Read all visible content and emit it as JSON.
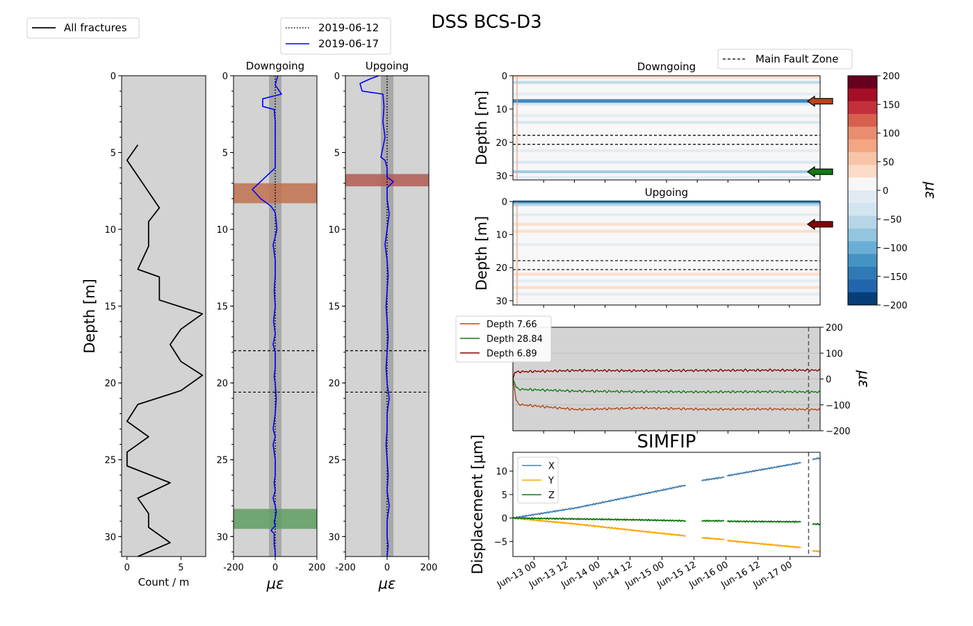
{
  "figure": {
    "title": "DSS BCS-D3",
    "colors": {
      "background": "#d3d3d3",
      "fracture_line": "#000000",
      "baseline": "#000000",
      "current": "#0000ff",
      "fault": "#000000",
      "dss_band": "#9a9a9a"
    }
  },
  "chart_data": [
    {
      "id": "fractures",
      "type": "line",
      "xlabel": "Count / m",
      "ylabel": "Depth [m]",
      "xlim": [
        -0.5,
        7.3
      ],
      "ylim": [
        31.3,
        0
      ],
      "xticks": [
        0,
        5
      ],
      "yticks": [
        0,
        5,
        10,
        15,
        20,
        25,
        30
      ],
      "legend": {
        "position": "top-left",
        "entries": [
          "All fractures"
        ]
      },
      "series": [
        {
          "name": "All fractures",
          "color": "#000000",
          "count": [
            1,
            0,
            3,
            2,
            2,
            1,
            3,
            3,
            7,
            5,
            4,
            5,
            7,
            5,
            1,
            0,
            2,
            0,
            0,
            4,
            1,
            2,
            2,
            4,
            1
          ],
          "depth": [
            4.5,
            5.5,
            8.6,
            9.5,
            11.1,
            12.6,
            13.1,
            14.6,
            15.5,
            16.5,
            17.5,
            18.6,
            19.5,
            20.5,
            21.4,
            22.5,
            23.5,
            24.5,
            25.4,
            26.5,
            27.5,
            28.5,
            29.4,
            30.4,
            31.3
          ]
        }
      ]
    },
    {
      "id": "downgoing_profile",
      "type": "line",
      "title": "Downgoing",
      "xlabel": "με",
      "xlim": [
        -200,
        200
      ],
      "ylim": [
        31.3,
        0
      ],
      "xticks": [
        -200,
        0,
        200
      ],
      "yticks": [
        0,
        5,
        10,
        15,
        20,
        25,
        30
      ],
      "legend": {
        "position": "top",
        "entries": [
          "2019-06-12",
          "2019-06-17"
        ]
      },
      "fault_depths": [
        17.9,
        20.6
      ],
      "band": [
        -30,
        30
      ],
      "highlights": [
        {
          "from": 7.0,
          "to": 8.3,
          "color": "#c0714e"
        },
        {
          "from": 28.2,
          "to": 29.5,
          "color": "#5e9e60"
        }
      ],
      "series": [
        {
          "name": "2019-06-12",
          "style": "dotted",
          "color": "#000000",
          "strain": [
            0,
            0
          ],
          "depth": [
            0,
            31.3
          ]
        },
        {
          "name": "2019-06-17",
          "style": "solid",
          "color": "#0000ff",
          "strain": [
            12,
            0,
            30,
            -60,
            -60,
            -5,
            0,
            0,
            -110,
            -70,
            -20,
            0,
            5,
            8,
            0,
            -10,
            0,
            0,
            -5,
            0,
            -8,
            0,
            -10,
            0,
            0,
            -5,
            0,
            5,
            0,
            -10,
            0,
            -10,
            0,
            0,
            -5,
            0,
            -10,
            0,
            5,
            0,
            -5,
            0,
            -20,
            -5,
            -5,
            0,
            0
          ],
          "depth": [
            0,
            0.6,
            1.2,
            1.5,
            2.0,
            2.2,
            3.0,
            6.0,
            7.4,
            8.0,
            8.5,
            8.9,
            9.5,
            10.0,
            10.5,
            11.0,
            12.0,
            13.0,
            14.0,
            15.0,
            16.0,
            16.8,
            17.5,
            18.0,
            19.0,
            19.6,
            20.0,
            21.0,
            22.0,
            23.0,
            23.5,
            24.0,
            25.0,
            26.0,
            26.5,
            27.0,
            27.5,
            28.0,
            28.4,
            28.8,
            29.0,
            29.3,
            29.6,
            29.8,
            30.5,
            31.0,
            31.3
          ]
        }
      ]
    },
    {
      "id": "upgoing_profile",
      "type": "line",
      "title": "Upgoing",
      "xlabel": "με",
      "xlim": [
        -200,
        200
      ],
      "ylim": [
        31.3,
        0
      ],
      "xticks": [
        -200,
        0,
        200
      ],
      "yticks": [
        0,
        5,
        10,
        15,
        20,
        25,
        30
      ],
      "fault_depths": [
        17.9,
        20.6
      ],
      "band": [
        -30,
        30
      ],
      "highlights": [
        {
          "from": 6.4,
          "to": 7.2,
          "color": "#b05a52"
        }
      ],
      "series": [
        {
          "name": "2019-06-12",
          "style": "dotted",
          "color": "#000000",
          "strain": [
            0,
            0
          ],
          "depth": [
            0,
            31.3
          ]
        },
        {
          "name": "2019-06-17",
          "style": "solid",
          "color": "#0000ff",
          "strain": [
            -40,
            -80,
            -130,
            -120,
            -20,
            -15,
            -20,
            -10,
            -25,
            -30,
            -10,
            0,
            0,
            30,
            0,
            0,
            10,
            0,
            -10,
            0,
            5,
            0,
            -5,
            0,
            5,
            0,
            -5,
            0,
            10,
            0,
            0,
            -5,
            0,
            5,
            0,
            10,
            0,
            0,
            5,
            0
          ],
          "depth": [
            0,
            0.2,
            0.5,
            1.0,
            1.2,
            2.0,
            3.0,
            4.0,
            5.0,
            5.3,
            5.5,
            6.0,
            6.6,
            6.9,
            7.3,
            8.0,
            9.0,
            10.0,
            11.0,
            12.0,
            13.0,
            14.0,
            15.0,
            16.0,
            17.0,
            18.0,
            19.0,
            20.0,
            21.0,
            22.0,
            23.0,
            24.0,
            25.0,
            26.0,
            27.0,
            28.0,
            29.0,
            30.0,
            30.6,
            31.3
          ]
        }
      ]
    },
    {
      "id": "downgoing_waterfall",
      "type": "heatmap",
      "title": "Downgoing",
      "ylabel": "Depth [m]",
      "ylim": [
        31.3,
        0
      ],
      "yticks": [
        0,
        10,
        20,
        30
      ],
      "fault_depths": [
        17.9,
        20.6
      ],
      "legend": {
        "position": "top-right",
        "entries": [
          "Main Fault Zone"
        ]
      },
      "rows": [
        {
          "depth": 0.5,
          "value": 30
        },
        {
          "depth": 2.0,
          "value": -60
        },
        {
          "depth": 4.0,
          "value": 15
        },
        {
          "depth": 5.5,
          "value": -20
        },
        {
          "depth": 7.66,
          "value": -140
        },
        {
          "depth": 8.5,
          "value": -40
        },
        {
          "depth": 10.0,
          "value": 10
        },
        {
          "depth": 12.0,
          "value": -15
        },
        {
          "depth": 14.0,
          "value": -30
        },
        {
          "depth": 16.0,
          "value": 10
        },
        {
          "depth": 19.0,
          "value": 8
        },
        {
          "depth": 22.5,
          "value": -20
        },
        {
          "depth": 24.0,
          "value": 15
        },
        {
          "depth": 26.0,
          "value": -25
        },
        {
          "depth": 28.84,
          "value": -70
        },
        {
          "depth": 30.5,
          "value": -15
        }
      ],
      "arrows": [
        {
          "depth": 7.66,
          "color": "#b5451b"
        },
        {
          "depth": 28.84,
          "color": "#137813"
        }
      ]
    },
    {
      "id": "upgoing_waterfall",
      "type": "heatmap",
      "title": "Upgoing",
      "ylabel": "Depth [m]",
      "ylim": [
        31.3,
        0
      ],
      "yticks": [
        0,
        10,
        20,
        30
      ],
      "fault_depths": [
        17.9,
        20.6
      ],
      "rows": [
        {
          "depth": 0.3,
          "value": -120
        },
        {
          "depth": 1.0,
          "value": -60
        },
        {
          "depth": 2.5,
          "value": 20
        },
        {
          "depth": 4.0,
          "value": -15
        },
        {
          "depth": 6.89,
          "value": 40
        },
        {
          "depth": 9.0,
          "value": 30
        },
        {
          "depth": 11.0,
          "value": 10
        },
        {
          "depth": 13.0,
          "value": -15
        },
        {
          "depth": 15.0,
          "value": 10
        },
        {
          "depth": 19.0,
          "value": 10
        },
        {
          "depth": 22.0,
          "value": 30
        },
        {
          "depth": 24.0,
          "value": -15
        },
        {
          "depth": 26.0,
          "value": 25
        },
        {
          "depth": 28.0,
          "value": -20
        },
        {
          "depth": 30.0,
          "value": 15
        }
      ],
      "arrows": [
        {
          "depth": 6.89,
          "color": "#8b0000"
        }
      ]
    },
    {
      "id": "colorbar",
      "type": "heatmap",
      "label": "με",
      "range": [
        -200,
        200
      ],
      "ticks": [
        200,
        150,
        100,
        50,
        0,
        -50,
        -100,
        -150,
        -200
      ],
      "colors": [
        "#67001f",
        "#a50f26",
        "#c2303b",
        "#d6604d",
        "#e88d6f",
        "#f4a582",
        "#f8c4a8",
        "#fcdbc7",
        "#f7f7f7",
        "#e0ebf3",
        "#d1e5f0",
        "#b6d6e8",
        "#92c5de",
        "#6aaed6",
        "#4393c3",
        "#2f79b5",
        "#2166ac",
        "#073e78"
      ]
    },
    {
      "id": "strain_timeseries",
      "type": "line",
      "ylabel": "με",
      "ylim": [
        -200,
        200
      ],
      "yticks": [
        200,
        100,
        0,
        -100,
        -200
      ],
      "xlim": [
        0,
        4.8
      ],
      "marker_x": 4.62,
      "legend": {
        "position": "top-left",
        "entries": [
          "Depth 7.66",
          "Depth 28.84",
          "Depth 6.89"
        ]
      },
      "series": [
        {
          "name": "Depth 7.66",
          "color": "#b5451b",
          "t": [
            0,
            0.05,
            0.08,
            0.15,
            1.0,
            2.0,
            3.0,
            4.0,
            4.8
          ],
          "value": [
            0,
            -80,
            -95,
            -100,
            -118,
            -112,
            -117,
            -116,
            -118
          ]
        },
        {
          "name": "Depth 28.84",
          "color": "#137813",
          "t": [
            0,
            0.05,
            0.08,
            0.15,
            1.0,
            2.0,
            3.0,
            4.0,
            4.8
          ],
          "value": [
            0,
            -30,
            -38,
            -40,
            -47,
            -49,
            -50,
            -49,
            -50
          ]
        },
        {
          "name": "Depth 6.89",
          "color": "#8b0000",
          "t": [
            0,
            0.03,
            0.1,
            1.0,
            2.0,
            3.0,
            4.0,
            4.8
          ],
          "value": [
            0,
            25,
            28,
            33,
            32,
            33,
            34,
            34
          ]
        }
      ]
    },
    {
      "id": "simfip",
      "type": "line",
      "title": "SIMFIP",
      "ylabel": "Displacement [μm]",
      "ylim": [
        -8.2,
        14.0
      ],
      "yticks": [
        10,
        5,
        0,
        -5
      ],
      "xlim": [
        0,
        4.8
      ],
      "xticks": [
        0.33,
        0.83,
        1.33,
        1.83,
        2.33,
        2.83,
        3.33,
        3.83,
        4.33
      ],
      "xticklabels": [
        "Jun-13 00",
        "Jun-13 12",
        "Jun-14 00",
        "Jun-14 12",
        "Jun-15 00",
        "Jun-15 12",
        "Jun-16 00",
        "Jun-16 12",
        "Jun-17 00"
      ],
      "marker_x": 4.62,
      "legend": {
        "position": "top-left",
        "entries": [
          "X",
          "Y",
          "Z"
        ]
      },
      "series": [
        {
          "name": "X",
          "color": "#4682b4",
          "segments": [
            {
              "t": [
                0,
                1.0,
                2.0,
                2.7
              ],
              "value": [
                0,
                2.2,
                5.0,
                7.0
              ]
            },
            {
              "t": [
                2.95,
                3.3
              ],
              "value": [
                8.0,
                8.7
              ]
            },
            {
              "t": [
                3.35,
                4.5
              ],
              "value": [
                9.0,
                11.8
              ]
            },
            {
              "t": [
                4.68,
                4.8
              ],
              "value": [
                12.5,
                12.8
              ]
            }
          ]
        },
        {
          "name": "Y",
          "color": "#ffa500",
          "segments": [
            {
              "t": [
                0,
                1.0,
                2.0,
                2.7
              ],
              "value": [
                0,
                -1.3,
                -2.8,
                -3.8
              ]
            },
            {
              "t": [
                2.95,
                3.3
              ],
              "value": [
                -4.2,
                -4.6
              ]
            },
            {
              "t": [
                3.35,
                4.5
              ],
              "value": [
                -4.8,
                -6.3
              ]
            },
            {
              "t": [
                4.68,
                4.8
              ],
              "value": [
                -7.0,
                -7.1
              ]
            }
          ]
        },
        {
          "name": "Z",
          "color": "#137813",
          "segments": [
            {
              "t": [
                0,
                1.0,
                2.0,
                2.7
              ],
              "value": [
                0,
                -0.2,
                -0.4,
                -0.6
              ]
            },
            {
              "t": [
                2.95,
                3.3
              ],
              "value": [
                -0.6,
                -0.6
              ]
            },
            {
              "t": [
                3.35,
                4.5
              ],
              "value": [
                -0.7,
                -0.8
              ]
            },
            {
              "t": [
                4.68,
                4.8
              ],
              "value": [
                -1.3,
                -1.3
              ]
            }
          ]
        }
      ]
    }
  ]
}
